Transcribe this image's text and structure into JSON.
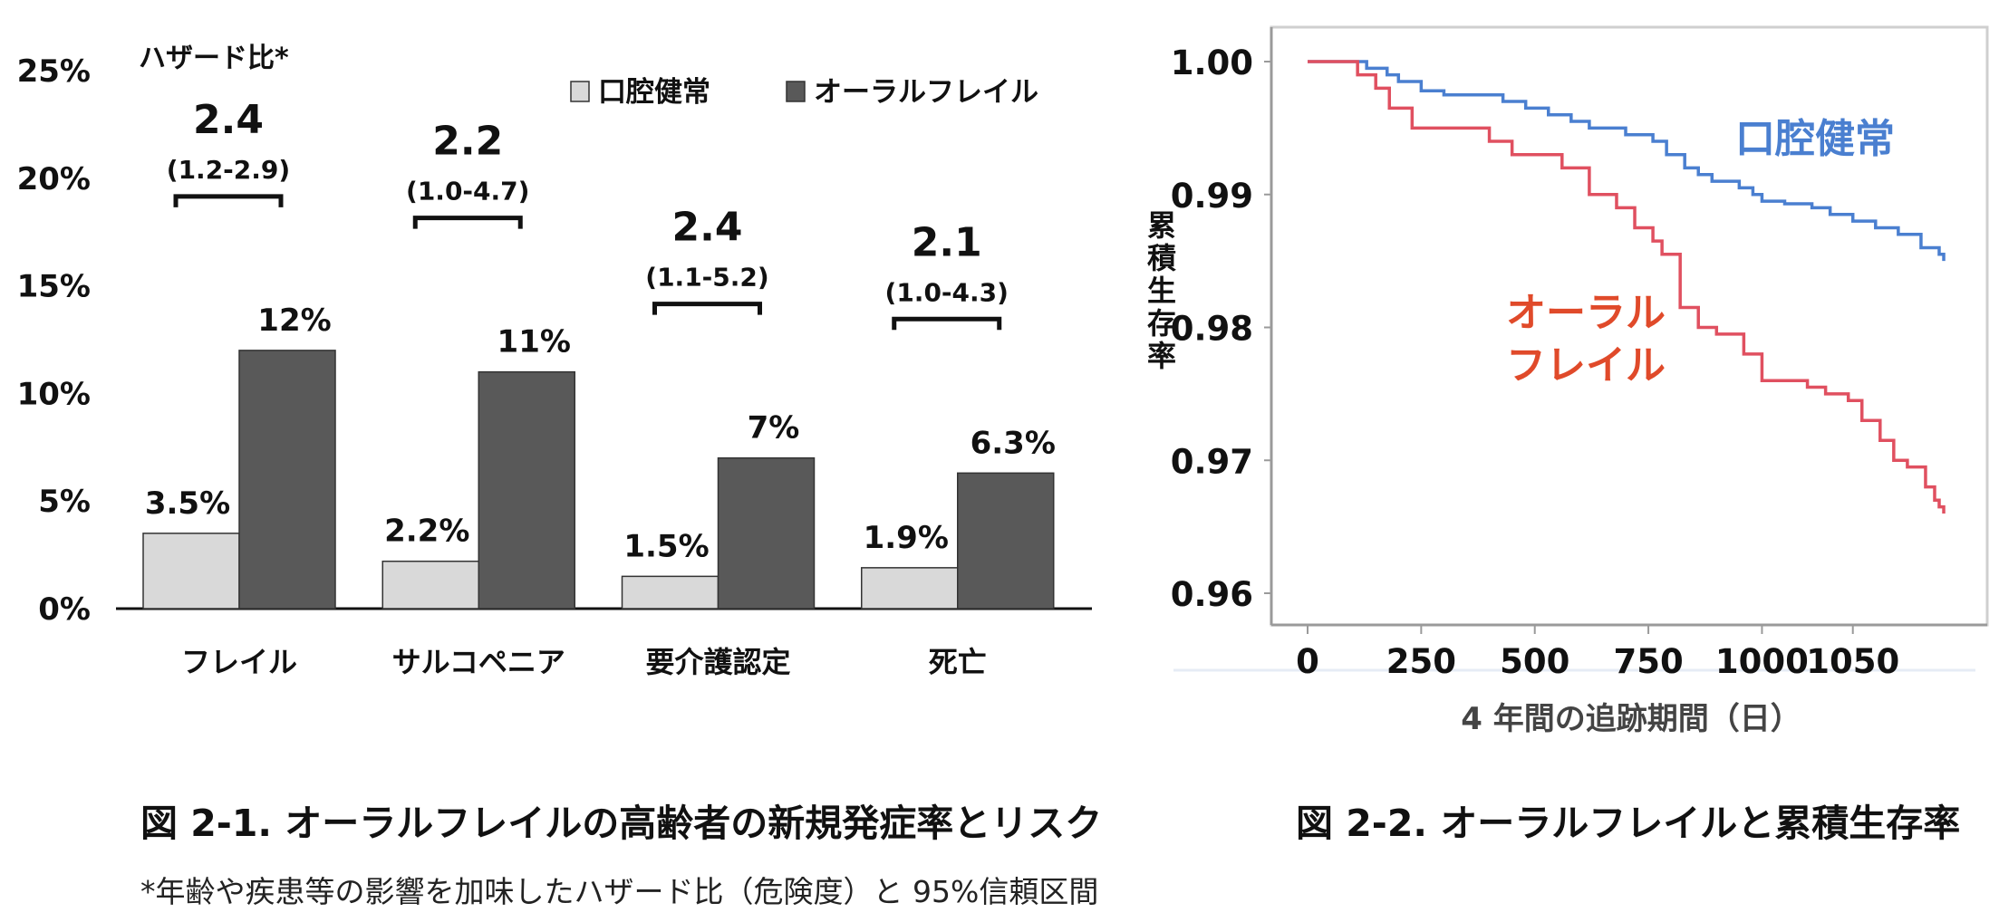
{
  "chart_data": [
    {
      "type": "bar",
      "categories": [
        "フレイル",
        "サルコペニア",
        "要介護認定",
        "死亡"
      ],
      "series": [
        {
          "name": "口腔健常",
          "values": [
            3.5,
            2.2,
            1.5,
            1.9
          ],
          "labels": [
            "3.5%",
            "2.2%",
            "1.5%",
            "1.9%"
          ],
          "color": "#d9d9d9"
        },
        {
          "name": "オーラルフレイル",
          "values": [
            12,
            11,
            7,
            6.3
          ],
          "labels": [
            "12%",
            "11%",
            "7%",
            "6.3%"
          ],
          "color": "#595959"
        }
      ],
      "y_ticks": [
        "0%",
        "5%",
        "10%",
        "15%",
        "20%",
        "25%"
      ],
      "ylim": [
        0,
        25
      ],
      "hazard_title": "ハザード比*",
      "hazard_ratios": [
        "2.4",
        "2.2",
        "2.4",
        "2.1"
      ],
      "hazard_ci": [
        "(1.2-2.9)",
        "(1.0-4.7)",
        "(1.1-5.2)",
        "(1.0-4.3)"
      ],
      "legend_position": "top-right",
      "grid": false
    },
    {
      "type": "line",
      "xlabel": "4 年間の追跡期間（日）",
      "ylabel": "累積生存率",
      "x_ticks": [
        "0",
        "250",
        "500",
        "750",
        "1000",
        "1050"
      ],
      "y_ticks": [
        "0.96",
        "0.97",
        "0.98",
        "0.99",
        "1.00"
      ],
      "ylim": [
        0.96,
        1.0
      ],
      "grid": false,
      "series": [
        {
          "name": "口腔健常",
          "label_lines": [
            "口腔健常"
          ],
          "color": "#4a7fd0",
          "points": [
            [
              0,
              1.0
            ],
            [
              100,
              1.0
            ],
            [
              130,
              0.9995
            ],
            [
              175,
              0.999
            ],
            [
              200,
              0.9985
            ],
            [
              250,
              0.9978
            ],
            [
              300,
              0.9975
            ],
            [
              400,
              0.9975
            ],
            [
              430,
              0.997
            ],
            [
              480,
              0.9965
            ],
            [
              530,
              0.996
            ],
            [
              580,
              0.9955
            ],
            [
              620,
              0.995
            ],
            [
              680,
              0.995
            ],
            [
              700,
              0.9945
            ],
            [
              760,
              0.994
            ],
            [
              790,
              0.993
            ],
            [
              830,
              0.992
            ],
            [
              860,
              0.9915
            ],
            [
              890,
              0.991
            ],
            [
              950,
              0.9905
            ],
            [
              980,
              0.99
            ],
            [
              1000,
              0.9895
            ],
            [
              1050,
              0.9893
            ],
            [
              1110,
              0.989
            ],
            [
              1150,
              0.9885
            ],
            [
              1200,
              0.988
            ],
            [
              1250,
              0.9875
            ],
            [
              1300,
              0.987
            ],
            [
              1350,
              0.986
            ],
            [
              1390,
              0.9855
            ],
            [
              1400,
              0.985
            ]
          ]
        },
        {
          "name": "オーラルフレイル",
          "label_lines": [
            "オーラル",
            "フレイル"
          ],
          "color": "#e05060",
          "points": [
            [
              0,
              1.0
            ],
            [
              100,
              1.0
            ],
            [
              110,
              0.999
            ],
            [
              150,
              0.998
            ],
            [
              180,
              0.9965
            ],
            [
              230,
              0.995
            ],
            [
              280,
              0.995
            ],
            [
              350,
              0.995
            ],
            [
              400,
              0.994
            ],
            [
              450,
              0.993
            ],
            [
              500,
              0.993
            ],
            [
              560,
              0.992
            ],
            [
              620,
              0.99
            ],
            [
              680,
              0.989
            ],
            [
              720,
              0.9875
            ],
            [
              760,
              0.9865
            ],
            [
              780,
              0.9855
            ],
            [
              820,
              0.9815
            ],
            [
              860,
              0.98
            ],
            [
              900,
              0.9795
            ],
            [
              960,
              0.978
            ],
            [
              1000,
              0.976
            ],
            [
              1050,
              0.976
            ],
            [
              1100,
              0.9755
            ],
            [
              1140,
              0.975
            ],
            [
              1190,
              0.9745
            ],
            [
              1220,
              0.973
            ],
            [
              1260,
              0.9715
            ],
            [
              1290,
              0.97
            ],
            [
              1320,
              0.9695
            ],
            [
              1360,
              0.968
            ],
            [
              1380,
              0.967
            ],
            [
              1390,
              0.9665
            ],
            [
              1400,
              0.966
            ]
          ]
        }
      ]
    }
  ],
  "captions": {
    "fig1": "図 2-1. オーラルフレイルの高齢者の新規発症率とリスク",
    "fig2": "図 2-2. オーラルフレイルと累積生存率",
    "footnote": "*年齢や疾患等の影響を加味したハザード比（危険度）と 95%信頼区間"
  }
}
